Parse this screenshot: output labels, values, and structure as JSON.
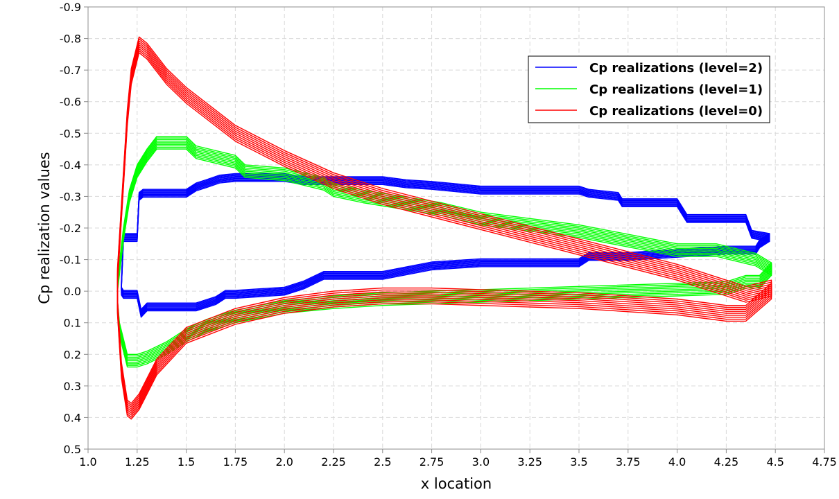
{
  "chart_data": {
    "type": "line",
    "title": "",
    "xlabel": "x location",
    "ylabel": "Cp realization values",
    "xlim": [
      1.0,
      4.75
    ],
    "ylim": [
      0.5,
      -0.9
    ],
    "y_inverted": true,
    "grid": true,
    "legend_position": "top-right",
    "x_ticks": [
      "1.0",
      "1.25",
      "1.5",
      "1.75",
      "2.0",
      "2.25",
      "2.5",
      "2.75",
      "3.0",
      "3.25",
      "3.5",
      "3.75",
      "4.0",
      "4.25",
      "4.5",
      "4.75"
    ],
    "y_ticks": [
      "-0.9",
      "-0.8",
      "-0.7",
      "-0.6",
      "-0.5",
      "-0.4",
      "-0.3",
      "-0.2",
      "-0.1",
      "0.0",
      "0.1",
      "0.2",
      "0.3",
      "0.4",
      "0.5"
    ],
    "series": [
      {
        "name": "Cp realizations (level=2)",
        "color": "#0000ff",
        "spread": 0.025,
        "upper": {
          "x": [
            1.17,
            1.18,
            1.2,
            1.25,
            1.26,
            1.28,
            1.5,
            1.55,
            1.6,
            1.67,
            1.75,
            2.0,
            2.1,
            2.2,
            2.5,
            2.62,
            2.75,
            3.0,
            3.5,
            3.55,
            3.7,
            3.72,
            4.0,
            4.05,
            4.35,
            4.38,
            4.47
          ],
          "y": [
            -0.02,
            -0.17,
            -0.17,
            -0.17,
            -0.3,
            -0.31,
            -0.31,
            -0.33,
            -0.34,
            -0.355,
            -0.36,
            -0.36,
            -0.35,
            -0.35,
            -0.35,
            -0.34,
            -0.335,
            -0.32,
            -0.32,
            -0.31,
            -0.3,
            -0.28,
            -0.28,
            -0.23,
            -0.23,
            -0.18,
            -0.17
          ]
        },
        "lower": {
          "x": [
            1.17,
            1.18,
            1.25,
            1.27,
            1.3,
            1.5,
            1.55,
            1.65,
            1.7,
            1.75,
            2.0,
            2.1,
            2.2,
            2.25,
            2.5,
            2.75,
            3.0,
            3.5,
            3.55,
            3.75,
            4.0,
            4.25,
            4.4,
            4.42,
            4.47
          ],
          "y": [
            0.0,
            0.01,
            0.01,
            0.07,
            0.05,
            0.05,
            0.05,
            0.03,
            0.01,
            0.01,
            0.0,
            -0.02,
            -0.05,
            -0.05,
            -0.05,
            -0.08,
            -0.09,
            -0.09,
            -0.11,
            -0.11,
            -0.12,
            -0.13,
            -0.13,
            -0.15,
            -0.17
          ]
        }
      },
      {
        "name": "Cp realizations (level=1)",
        "color": "#00ff00",
        "spread": 0.04,
        "upper": {
          "x": [
            1.15,
            1.18,
            1.21,
            1.25,
            1.3,
            1.35,
            1.5,
            1.55,
            1.75,
            1.8,
            2.0,
            2.2,
            2.25,
            2.4,
            2.6,
            2.8,
            3.0,
            3.25,
            3.5,
            3.75,
            4.0,
            4.2,
            4.4,
            4.48
          ],
          "y": [
            -0.02,
            -0.18,
            -0.3,
            -0.38,
            -0.43,
            -0.47,
            -0.47,
            -0.44,
            -0.41,
            -0.38,
            -0.37,
            -0.34,
            -0.32,
            -0.3,
            -0.28,
            -0.26,
            -0.23,
            -0.21,
            -0.19,
            -0.16,
            -0.13,
            -0.13,
            -0.1,
            -0.07
          ]
        },
        "lower": {
          "x": [
            1.15,
            1.16,
            1.2,
            1.25,
            1.3,
            1.4,
            1.5,
            1.6,
            1.75,
            2.0,
            2.25,
            2.5,
            2.75,
            3.0,
            3.5,
            4.0,
            4.25,
            4.35,
            4.42,
            4.48
          ],
          "y": [
            0.05,
            0.12,
            0.22,
            0.22,
            0.21,
            0.18,
            0.14,
            0.11,
            0.08,
            0.05,
            0.035,
            0.025,
            0.02,
            0.015,
            0.005,
            -0.005,
            -0.01,
            -0.03,
            -0.03,
            -0.07
          ]
        }
      },
      {
        "name": "Cp realizations (level=0)",
        "color": "#ff0000",
        "spread": 0.05,
        "upper": {
          "x": [
            1.15,
            1.17,
            1.2,
            1.22,
            1.26,
            1.3,
            1.35,
            1.4,
            1.5,
            1.75,
            2.0,
            2.25,
            2.5,
            3.0,
            3.5,
            4.0,
            4.25,
            4.35,
            4.48
          ],
          "y": [
            -0.05,
            -0.25,
            -0.55,
            -0.68,
            -0.78,
            -0.76,
            -0.72,
            -0.68,
            -0.62,
            -0.5,
            -0.42,
            -0.35,
            -0.3,
            -0.22,
            -0.14,
            -0.06,
            -0.01,
            0.01,
            -0.01
          ]
        },
        "lower": {
          "x": [
            1.15,
            1.17,
            1.2,
            1.22,
            1.26,
            1.35,
            1.5,
            1.75,
            2.0,
            2.25,
            2.5,
            2.75,
            3.0,
            3.5,
            4.0,
            4.25,
            4.35,
            4.48
          ],
          "y": [
            0.05,
            0.25,
            0.37,
            0.38,
            0.35,
            0.24,
            0.14,
            0.08,
            0.045,
            0.025,
            0.015,
            0.015,
            0.02,
            0.03,
            0.05,
            0.07,
            0.07,
            0.0
          ]
        }
      }
    ]
  }
}
